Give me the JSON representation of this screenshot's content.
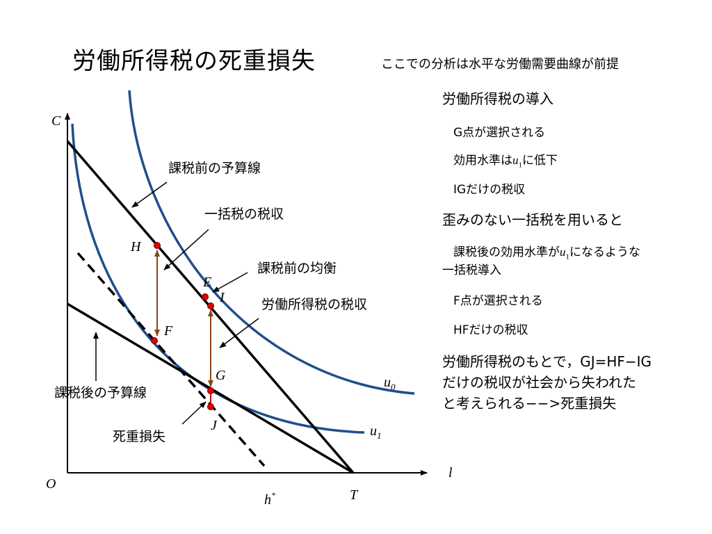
{
  "title": "労働所得税の死重損失",
  "subtitle": "ここでの分析は水平な労働需要曲線が前提",
  "notes": {
    "h1": "労働所得税の導入",
    "s1a": "G点が選択される",
    "s1b_pre": "効用水準は",
    "s1b_var": "u",
    "s1b_sub": "1",
    "s1b_post": "に低下",
    "s1c": "IGだけの税収",
    "h2": "歪みのない一括税を用いると",
    "s2a_pre": "課税後の効用水準が",
    "s2a_var": "u",
    "s2a_sub": "1",
    "s2a_post": "になるような",
    "s2a_line2": "一括税導入",
    "s2b": "F点が選択される",
    "s2c": "HFだけの税収",
    "h3_line1": "労働所得税のもとで，GJ=HF−IG",
    "h3_line2": "だけの税収が社会から失われた",
    "h3_line3": "と考えられる−−>死重損失"
  },
  "diagram": {
    "axis_y_label": "C",
    "axis_x_label": "l",
    "origin_label": "O",
    "T_label": "T",
    "hstar_label": "h",
    "hstar_sup": "*",
    "points": {
      "H": "H",
      "E": "E",
      "I": "I",
      "F": "F",
      "G": "G",
      "J": "J"
    },
    "curve_u0": "u",
    "curve_u0_sub": "0",
    "curve_u1": "u",
    "curve_u1_sub": "1",
    "annot_pretax_budget": "課税前の予算線",
    "annot_lump_revenue": "一括税の税収",
    "annot_pretax_equilibrium": "課税前の均衡",
    "annot_income_tax_revenue": "労働所得税の税収",
    "annot_posttax_budget": "課税後の予算線",
    "annot_deadweight": "死重損失"
  },
  "colors": {
    "curve": "#1f4e8c",
    "line": "#000000",
    "arrow": "#8b4513",
    "dot": "#e00000"
  }
}
